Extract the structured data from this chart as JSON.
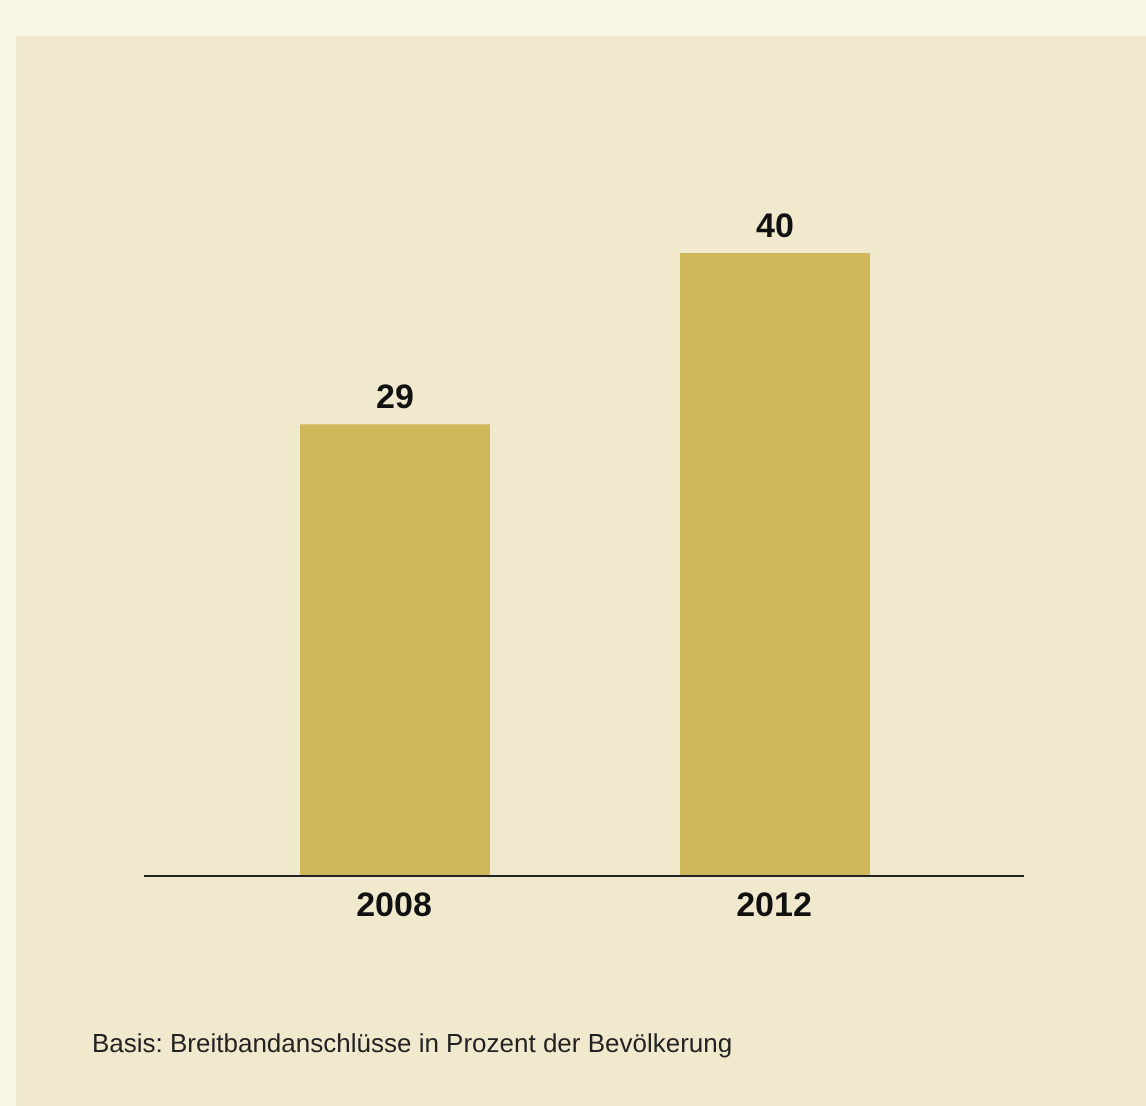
{
  "chart_data": {
    "type": "bar",
    "categories": [
      "2008",
      "2012"
    ],
    "values": [
      29,
      40
    ],
    "color": "#cfb85c",
    "data_labels": true,
    "annotations": [
      "Basis: Breitbandanschlüsse in Prozent der Bevölkerung"
    ]
  }
}
